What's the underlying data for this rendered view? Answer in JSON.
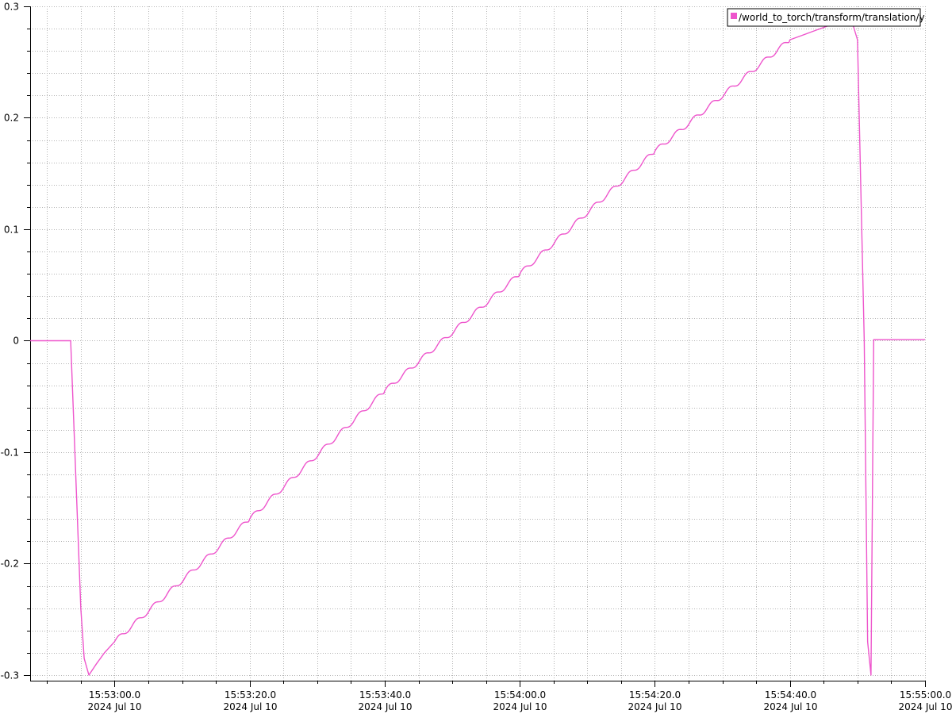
{
  "chart_data": {
    "type": "line",
    "title": "",
    "xlabel": "",
    "ylabel": "",
    "xlim": [
      "2024-07-10 15:52:47.5",
      "2024-07-10 15:55:00.0"
    ],
    "ylim": [
      -0.305,
      0.3
    ],
    "grid": true,
    "legend_position": "top-right",
    "y_ticks": [
      "-0.3",
      "-0.2",
      "-0.1",
      "0",
      "0.1",
      "0.2",
      "0.3"
    ],
    "x_ticks": [
      {
        "time": "15:53:00.0",
        "date": "2024 Jul 10"
      },
      {
        "time": "15:53:20.0",
        "date": "2024 Jul 10"
      },
      {
        "time": "15:53:40.0",
        "date": "2024 Jul 10"
      },
      {
        "time": "15:54:00.0",
        "date": "2024 Jul 10"
      },
      {
        "time": "15:54:20.0",
        "date": "2024 Jul 10"
      },
      {
        "time": "15:54:40.0",
        "date": "2024 Jul 10"
      },
      {
        "time": "15:55:00.0",
        "date": "2024 Jul 10"
      }
    ],
    "series": [
      {
        "name": "/world_to_torch/transform/translation/y",
        "color": "#ee55cc",
        "x": [
          "15:52:47.5",
          "15:52:53.5",
          "15:52:54.0",
          "15:52:55.0",
          "15:52:55.5",
          "15:52:56.2",
          "15:52:57.3",
          "15:52:58.5",
          "15:53:00.0",
          "15:53:20.0",
          "15:53:40.0",
          "15:54:00.0",
          "15:54:20.0",
          "15:54:40.0",
          "15:54:49.0",
          "15:54:50.0",
          "15:54:51.0",
          "15:54:51.5",
          "15:54:52.0",
          "15:54:52.4",
          "15:54:53.0",
          "15:55:00.0"
        ],
        "y": [
          0.0,
          0.0,
          -0.08,
          -0.24,
          -0.285,
          -0.3,
          -0.29,
          -0.28,
          -0.27,
          -0.16,
          -0.045,
          0.06,
          0.17,
          0.27,
          0.29,
          0.27,
          0.0,
          -0.27,
          -0.3,
          0.001,
          0.001,
          0.001
        ]
      }
    ]
  }
}
